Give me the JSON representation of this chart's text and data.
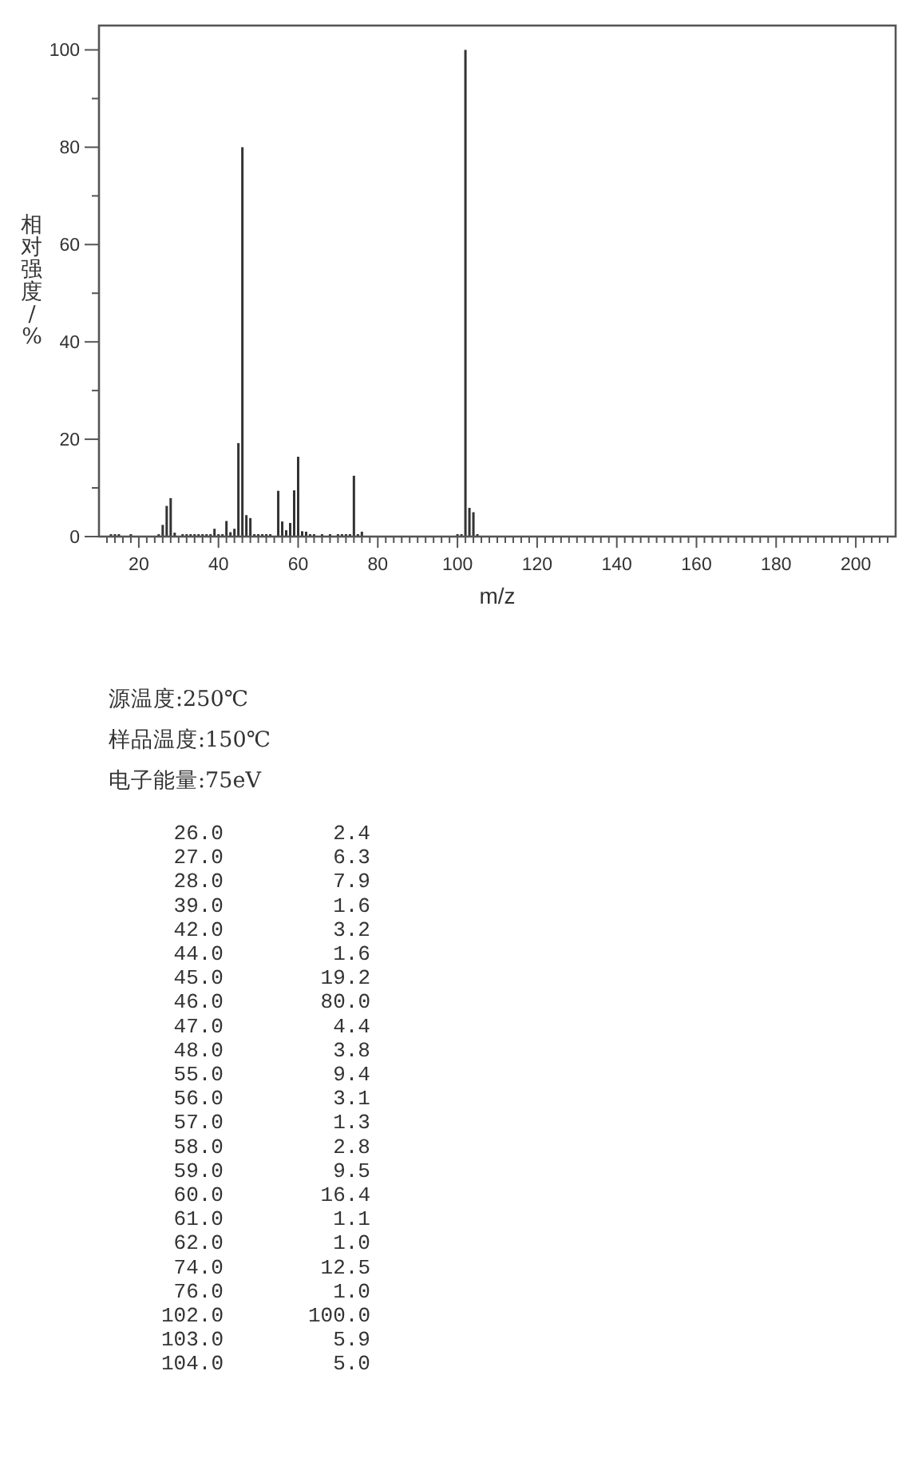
{
  "chart_data": {
    "type": "bar",
    "xlabel": "m/z",
    "ylabel": "相对强度/%",
    "annotations": [
      "源温度:250℃",
      "样品温度:150℃",
      "电子能量:75eV",
      "26.0 2.4",
      "27.0 6.3",
      "28.0 7.9",
      "39.0 1.6",
      "42.0 3.2",
      "44.0 1.6",
      "45.0 19.2",
      "46.0 80.0",
      "47.0 4.4",
      "48.0 3.8",
      "55.0 9.4",
      "56.0 3.1",
      "57.0 1.3",
      "58.0 2.8",
      "59.0 9.5",
      "60.0 16.4",
      "61.0 1.1",
      "62.0 1.0",
      "74.0 12.5",
      "76.0 1.0",
      "102.0 100.0",
      "103.0 5.9",
      "104.0 5.0"
    ],
    "x": [
      13,
      14,
      15,
      18,
      25,
      26,
      27,
      28,
      29,
      31,
      32,
      33,
      34,
      35,
      36,
      37,
      38,
      39,
      40,
      41,
      42,
      43,
      44,
      45,
      46,
      47,
      48,
      49,
      50,
      51,
      52,
      53,
      55,
      56,
      57,
      58,
      59,
      60,
      61,
      62,
      63,
      64,
      66,
      68,
      70,
      71,
      72,
      73,
      74,
      75,
      76,
      100,
      101,
      102,
      103,
      104,
      105
    ],
    "values": [
      0.5,
      0.5,
      0.5,
      0.5,
      0.5,
      2.4,
      6.3,
      7.9,
      0.8,
      0.5,
      0.5,
      0.5,
      0.5,
      0.5,
      0.5,
      0.5,
      0.5,
      1.6,
      0.5,
      0.5,
      3.2,
      0.9,
      1.6,
      19.2,
      80.0,
      4.4,
      3.8,
      0.5,
      0.5,
      0.5,
      0.5,
      0.5,
      9.4,
      3.1,
      1.3,
      2.8,
      9.5,
      16.4,
      1.1,
      1.0,
      0.5,
      0.5,
      0.5,
      0.5,
      0.5,
      0.5,
      0.5,
      0.5,
      12.5,
      0.5,
      1.0,
      0.5,
      0.5,
      100.0,
      5.9,
      5.0,
      0.5
    ],
    "color": "#333333",
    "xlim": [
      10,
      210
    ],
    "ylim": [
      0,
      105
    ],
    "xticks": [
      {
        "value": 12,
        "label": null
      },
      {
        "value": 14,
        "label": null
      },
      {
        "value": 16,
        "label": null
      },
      {
        "value": 18,
        "label": null
      },
      20,
      {
        "value": 22,
        "label": null
      },
      {
        "value": 24,
        "label": null
      },
      {
        "value": 26,
        "label": null
      },
      {
        "value": 28,
        "label": null
      },
      {
        "value": 30,
        "label": null
      },
      {
        "value": 32,
        "label": null
      },
      {
        "value": 34,
        "label": null
      },
      {
        "value": 36,
        "label": null
      },
      {
        "value": 38,
        "label": null
      },
      40,
      {
        "value": 42,
        "label": null
      },
      {
        "value": 44,
        "label": null
      },
      {
        "value": 46,
        "label": null
      },
      {
        "value": 48,
        "label": null
      },
      {
        "value": 50,
        "label": null
      },
      {
        "value": 52,
        "label": null
      },
      {
        "value": 54,
        "label": null
      },
      {
        "value": 56,
        "label": null
      },
      {
        "value": 58,
        "label": null
      },
      60,
      {
        "value": 62,
        "label": null
      },
      {
        "value": 64,
        "label": null
      },
      {
        "value": 66,
        "label": null
      },
      {
        "value": 68,
        "label": null
      },
      {
        "value": 70,
        "label": null
      },
      {
        "value": 72,
        "label": null
      },
      {
        "value": 74,
        "label": null
      },
      {
        "value": 76,
        "label": null
      },
      {
        "value": 78,
        "label": null
      },
      80,
      {
        "value": 82,
        "label": null
      },
      {
        "value": 84,
        "label": null
      },
      {
        "value": 86,
        "label": null
      },
      {
        "value": 88,
        "label": null
      },
      {
        "value": 90,
        "label": null
      },
      {
        "value": 92,
        "label": null
      },
      {
        "value": 94,
        "label": null
      },
      {
        "value": 96,
        "label": null
      },
      {
        "value": 98,
        "label": null
      },
      100,
      {
        "value": 102,
        "label": null
      },
      {
        "value": 104,
        "label": null
      },
      {
        "value": 106,
        "label": null
      },
      {
        "value": 108,
        "label": null
      },
      {
        "value": 110,
        "label": null
      },
      {
        "value": 112,
        "label": null
      },
      {
        "value": 114,
        "label": null
      },
      {
        "value": 116,
        "label": null
      },
      {
        "value": 118,
        "label": null
      },
      120,
      {
        "value": 122,
        "label": null
      },
      {
        "value": 124,
        "label": null
      },
      {
        "value": 126,
        "label": null
      },
      {
        "value": 128,
        "label": null
      },
      {
        "value": 130,
        "label": null
      },
      {
        "value": 132,
        "label": null
      },
      {
        "value": 134,
        "label": null
      },
      {
        "value": 136,
        "label": null
      },
      {
        "value": 138,
        "label": null
      },
      140,
      {
        "value": 142,
        "label": null
      },
      {
        "value": 144,
        "label": null
      },
      {
        "value": 146,
        "label": null
      },
      {
        "value": 148,
        "label": null
      },
      {
        "value": 150,
        "label": null
      },
      {
        "value": 152,
        "label": null
      },
      {
        "value": 154,
        "label": null
      },
      {
        "value": 156,
        "label": null
      },
      {
        "value": 158,
        "label": null
      },
      160,
      {
        "value": 162,
        "label": null
      },
      {
        "value": 164,
        "label": null
      },
      {
        "value": 166,
        "label": null
      },
      {
        "value": 168,
        "label": null
      },
      {
        "value": 170,
        "label": null
      },
      {
        "value": 172,
        "label": null
      },
      {
        "value": 174,
        "label": null
      },
      {
        "value": 176,
        "label": null
      },
      {
        "value": 178,
        "label": null
      },
      180,
      {
        "value": 182,
        "label": null
      },
      {
        "value": 184,
        "label": null
      },
      {
        "value": 186,
        "label": null
      },
      {
        "value": 188,
        "label": null
      },
      {
        "value": 190,
        "label": null
      },
      {
        "value": 192,
        "label": null
      },
      {
        "value": 194,
        "label": null
      },
      {
        "value": 196,
        "label": null
      },
      {
        "value": 198,
        "label": null
      },
      200,
      {
        "value": 202,
        "label": null
      },
      {
        "value": 204,
        "label": null
      },
      {
        "value": 206,
        "label": null
      },
      {
        "value": 208,
        "label": null
      }
    ],
    "yticks": [
      0,
      {
        "value": 10,
        "label": null
      },
      20,
      {
        "value": 30,
        "label": null
      },
      40,
      {
        "value": 50,
        "label": null
      },
      60,
      {
        "value": 70,
        "label": null
      },
      80,
      {
        "value": 90,
        "label": null
      },
      100
    ]
  }
}
